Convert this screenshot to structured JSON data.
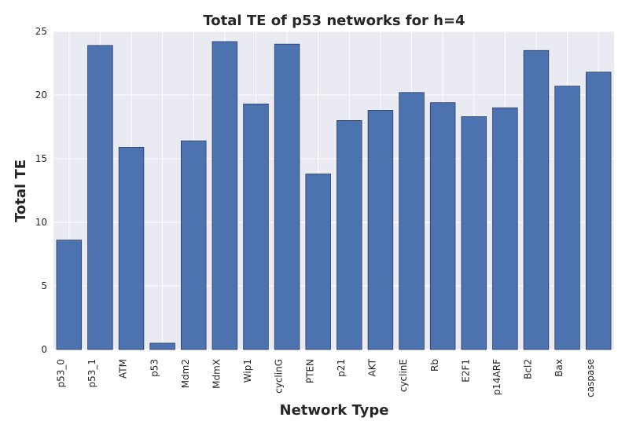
{
  "chart_data": {
    "type": "bar",
    "title": "Total TE of p53 networks for h=4",
    "xlabel": "Network Type",
    "ylabel": "Total TE",
    "categories": [
      "p53_0",
      "p53_1",
      "ATM",
      "p53",
      "Mdm2",
      "MdmX",
      "Wip1",
      "cyclinG",
      "PTEN",
      "p21",
      "AKT",
      "cyclinE",
      "Rb",
      "E2F1",
      "p14ARF",
      "Bcl2",
      "Bax",
      "caspase"
    ],
    "values": [
      8.6,
      23.9,
      15.9,
      0.5,
      16.4,
      24.2,
      19.3,
      24.0,
      13.8,
      18.0,
      18.8,
      20.2,
      19.4,
      18.3,
      19.0,
      23.5,
      20.7,
      21.8
    ],
    "ylim": [
      0,
      25
    ],
    "yticks": [
      0,
      5,
      10,
      15,
      20,
      25
    ],
    "grid": true,
    "colors": {
      "bar": "#4c72b0",
      "bar_edge": "#2b3f66",
      "plot_bg": "#eaeaf2",
      "grid": "#ffffff"
    }
  }
}
